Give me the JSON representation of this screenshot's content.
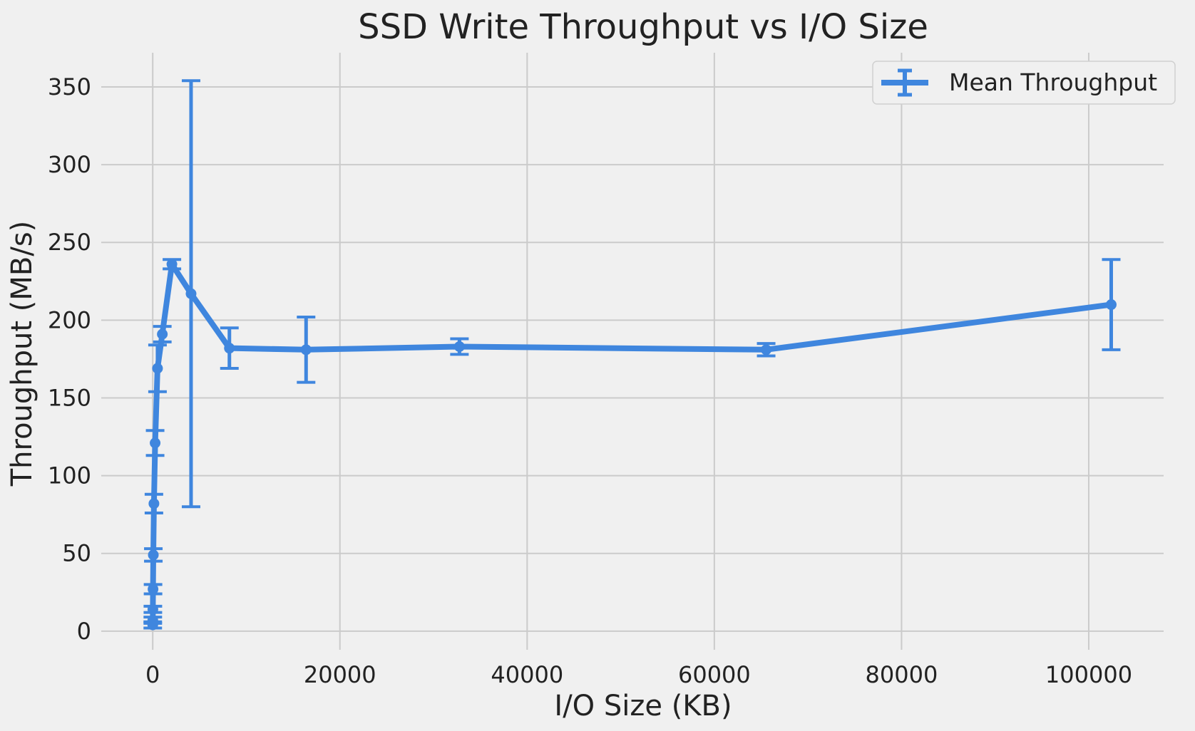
{
  "chart_data": {
    "type": "line",
    "title": "SSD Write Throughput vs I/O Size",
    "xlabel": "I/O Size (KB)",
    "ylabel": "Throughput (MB/s)",
    "xlim": [
      -5500,
      108000
    ],
    "ylim": [
      -12,
      372
    ],
    "x_ticks": [
      0,
      20000,
      40000,
      60000,
      80000,
      100000
    ],
    "y_ticks": [
      0,
      50,
      100,
      150,
      200,
      250,
      300,
      350
    ],
    "grid": true,
    "legend_position": "top-right",
    "series": [
      {
        "name": "Mean Throughput",
        "color": "#3f86de",
        "points": [
          {
            "x": 4,
            "y": 4,
            "err": 2
          },
          {
            "x": 8,
            "y": 7,
            "err": 2
          },
          {
            "x": 16,
            "y": 14,
            "err": 2
          },
          {
            "x": 32,
            "y": 27,
            "err": 3
          },
          {
            "x": 64,
            "y": 49,
            "err": 4
          },
          {
            "x": 128,
            "y": 82,
            "err": 6
          },
          {
            "x": 256,
            "y": 121,
            "err": 8
          },
          {
            "x": 512,
            "y": 169,
            "err": 15
          },
          {
            "x": 1024,
            "y": 191,
            "err": 5
          },
          {
            "x": 2048,
            "y": 236,
            "err": 3
          },
          {
            "x": 4096,
            "y": 217,
            "err": 137
          },
          {
            "x": 8192,
            "y": 182,
            "err": 13
          },
          {
            "x": 16384,
            "y": 181,
            "err": 21
          },
          {
            "x": 32768,
            "y": 183,
            "err": 5
          },
          {
            "x": 65536,
            "y": 181,
            "err": 4
          },
          {
            "x": 102400,
            "y": 210,
            "err": 29
          }
        ]
      }
    ]
  }
}
